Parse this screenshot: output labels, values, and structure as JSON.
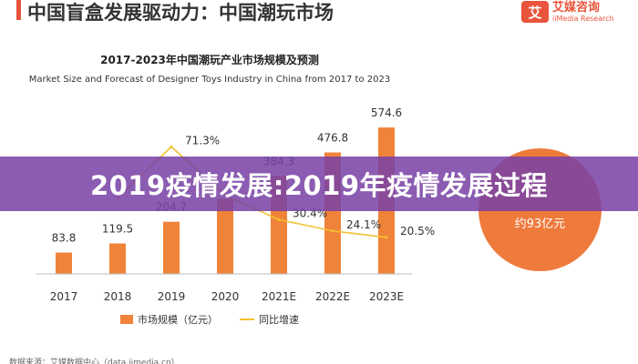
{
  "header": {
    "title": "中国盲盒发展驱动力：中国潮玩市场",
    "logo_mark": "艾",
    "logo_cn": "艾媒咨询",
    "logo_en": "iiMedia Research"
  },
  "overlay": {
    "banner": "2019疫情发展:2019年疫情发展过程"
  },
  "side_bubble": {
    "value": "约93亿元"
  },
  "source": "数据来源：艾媒数据中心（data.iimedia.cn）",
  "colors": {
    "bar": "#f0833a",
    "line": "#f2c12e",
    "brand": "#e8543c",
    "banner": "#7841a5"
  },
  "chart_data": {
    "type": "bar",
    "title": "2017-2023年中国潮玩产业市场规模及预测",
    "subtitle": "Market Size and Forecast of Designer Toys Industry in China from 2017 to 2023",
    "categories": [
      "2017",
      "2018",
      "2019",
      "2020",
      "2021E",
      "2022E",
      "2023E"
    ],
    "series": [
      {
        "name": "市场规模（亿元）",
        "type": "bar",
        "values": [
          83.8,
          119.5,
          204.7,
          294.8,
          384.3,
          476.8,
          574.6
        ],
        "labels": [
          "83.8",
          "119.5",
          "204.7",
          "",
          "384.3",
          "476.8",
          "574.6"
        ]
      },
      {
        "name": "同比增速",
        "type": "line",
        "values": [
          null,
          42.6,
          71.3,
          44.0,
          30.4,
          24.1,
          20.5
        ],
        "labels": [
          "",
          "",
          "71.3%",
          "",
          "30.4%",
          "24.1%",
          "20.5%"
        ]
      }
    ],
    "ylim_bar": [
      0,
      700
    ],
    "ylim_line": [
      0,
      100
    ],
    "legend_position": "bottom",
    "grid": false
  }
}
